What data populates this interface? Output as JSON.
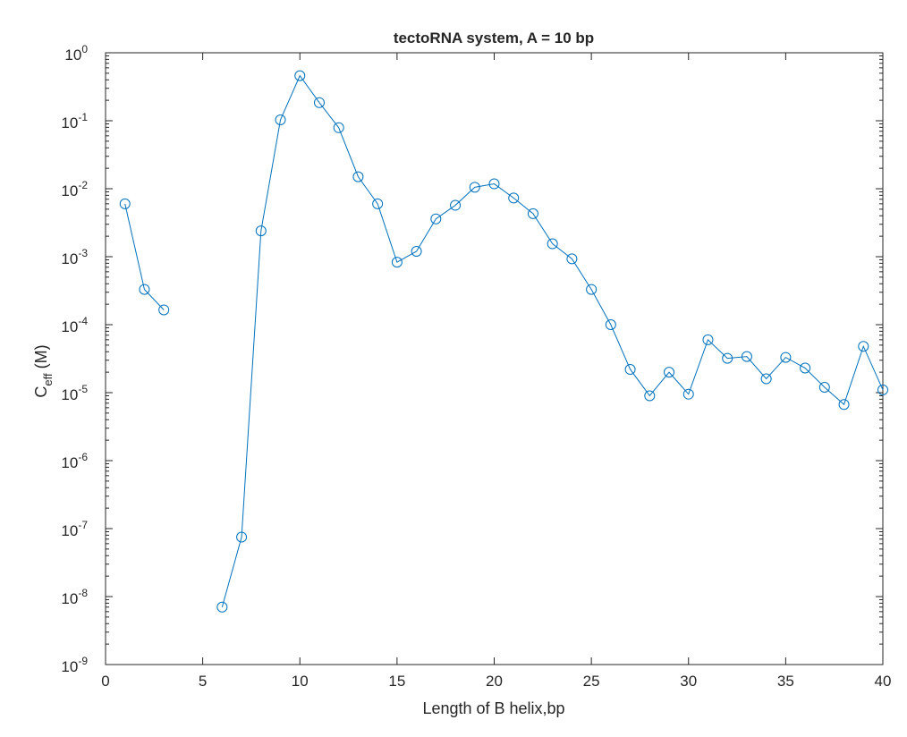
{
  "chart_data": {
    "type": "line",
    "title": "tectoRNA system, A = 10 bp",
    "xlabel": "Length of B helix,bp",
    "ylabel": {
      "main": "C",
      "subscript": "eff",
      "suffix": "(M)"
    },
    "y_scale": "log",
    "xlim": [
      0,
      40
    ],
    "ylim": [
      1e-09,
      1
    ],
    "x_ticks": [
      0,
      5,
      10,
      15,
      20,
      25,
      30,
      35,
      40
    ],
    "y_ticks": [
      {
        "value": 1.0,
        "base": "10",
        "exp": "0"
      },
      {
        "value": 0.1,
        "base": "10",
        "exp": "-1"
      },
      {
        "value": 0.01,
        "base": "10",
        "exp": "-2"
      },
      {
        "value": 0.001,
        "base": "10",
        "exp": "-3"
      },
      {
        "value": 0.0001,
        "base": "10",
        "exp": "-4"
      },
      {
        "value": 1e-05,
        "base": "10",
        "exp": "-5"
      },
      {
        "value": 1e-06,
        "base": "10",
        "exp": "-6"
      },
      {
        "value": 1e-07,
        "base": "10",
        "exp": "-7"
      },
      {
        "value": 1e-08,
        "base": "10",
        "exp": "-8"
      },
      {
        "value": 1e-09,
        "base": "10",
        "exp": "-9"
      }
    ],
    "grid": false,
    "marker": "open-circle",
    "series": [
      {
        "color": "#0072BD",
        "points": [
          [
            1,
            0.006
          ],
          [
            2,
            0.00033
          ],
          [
            3,
            0.000165
          ],
          [
            4,
            null
          ],
          [
            5,
            null
          ],
          [
            6,
            7e-09
          ],
          [
            7,
            7.5e-08
          ],
          [
            8,
            0.0024
          ],
          [
            9,
            0.103
          ],
          [
            10,
            0.46
          ],
          [
            11,
            0.185
          ],
          [
            12,
            0.079
          ],
          [
            13,
            0.015
          ],
          [
            14,
            0.006
          ],
          [
            15,
            0.00083
          ],
          [
            16,
            0.0012
          ],
          [
            17,
            0.0036
          ],
          [
            18,
            0.0057
          ],
          [
            19,
            0.0105
          ],
          [
            20,
            0.0118
          ],
          [
            21,
            0.0073
          ],
          [
            22,
            0.0043
          ],
          [
            23,
            0.00155
          ],
          [
            24,
            0.00093
          ],
          [
            25,
            0.00033
          ],
          [
            26,
            0.0001
          ],
          [
            27,
            2.2e-05
          ],
          [
            28,
            9e-06
          ],
          [
            29,
            2e-05
          ],
          [
            30,
            9.5e-06
          ],
          [
            31,
            6e-05
          ],
          [
            32,
            3.2e-05
          ],
          [
            33,
            3.4e-05
          ],
          [
            34,
            1.6e-05
          ],
          [
            35,
            3.3e-05
          ],
          [
            36,
            2.3e-05
          ],
          [
            37,
            1.2e-05
          ],
          [
            38,
            6.7e-06
          ],
          [
            39,
            4.8e-05
          ],
          [
            40,
            1.1e-05
          ]
        ]
      }
    ]
  }
}
